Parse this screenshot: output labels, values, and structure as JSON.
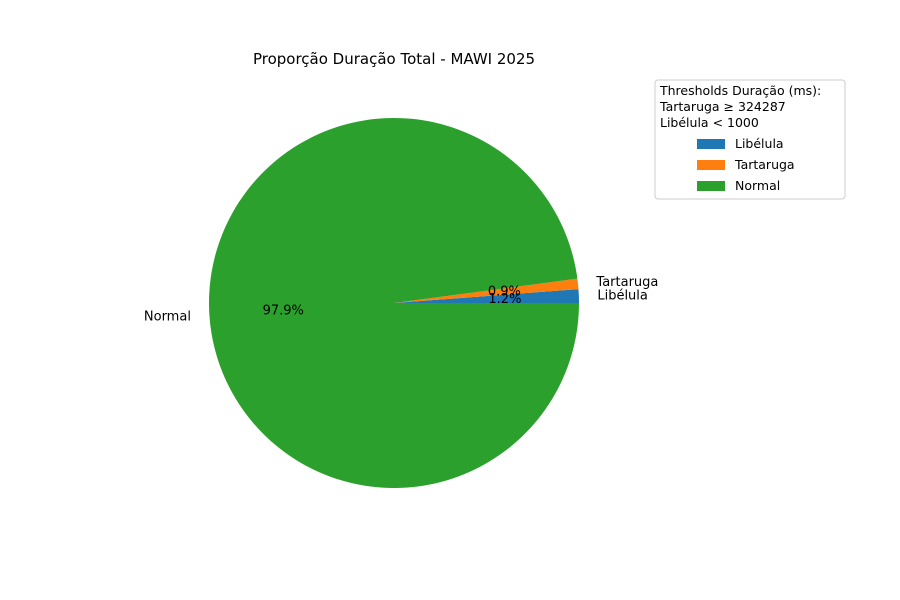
{
  "chart_data": {
    "type": "pie",
    "title": "Proporção Duração Total - MAWI 2025",
    "slices": [
      {
        "label": "Libélula",
        "value": 1.2,
        "pct_label": "1.2%",
        "color": "#1f77b4"
      },
      {
        "label": "Tartaruga",
        "value": 0.9,
        "pct_label": "0.9%",
        "color": "#ff7f0e"
      },
      {
        "label": "Normal",
        "value": 97.9,
        "pct_label": "97.9%",
        "color": "#2ca02c"
      }
    ],
    "start_angle_deg": 0,
    "direction": "counterclockwise",
    "legend": {
      "placement": "top-right",
      "title_lines": [
        "Thresholds Duração (ms):",
        "Tartaruga ≥ 324287",
        "Libélula < 1000"
      ],
      "entries": [
        "Libélula",
        "Tartaruga",
        "Normal"
      ]
    }
  }
}
